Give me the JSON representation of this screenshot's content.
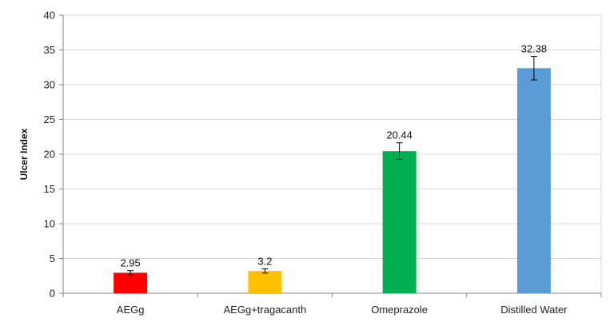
{
  "chart_data": {
    "type": "bar",
    "title": "",
    "xlabel": "",
    "ylabel": "Ulcer Index",
    "categories": [
      "AEGg",
      "AEGg+tragacanth",
      "Omeprazole",
      "Distilled Water"
    ],
    "values": [
      2.95,
      3.2,
      20.44,
      32.38
    ],
    "value_labels": [
      "2.95",
      "3.2",
      "20.44",
      "32.38"
    ],
    "error": [
      0.3,
      0.3,
      1.2,
      1.7
    ],
    "colors": [
      "#FF0000",
      "#FFC000",
      "#00B050",
      "#5B9BD5"
    ],
    "ylim": [
      0,
      40
    ],
    "yticks": [
      0,
      5,
      10,
      15,
      20,
      25,
      30,
      35,
      40
    ],
    "grid": true,
    "legend": "none"
  }
}
